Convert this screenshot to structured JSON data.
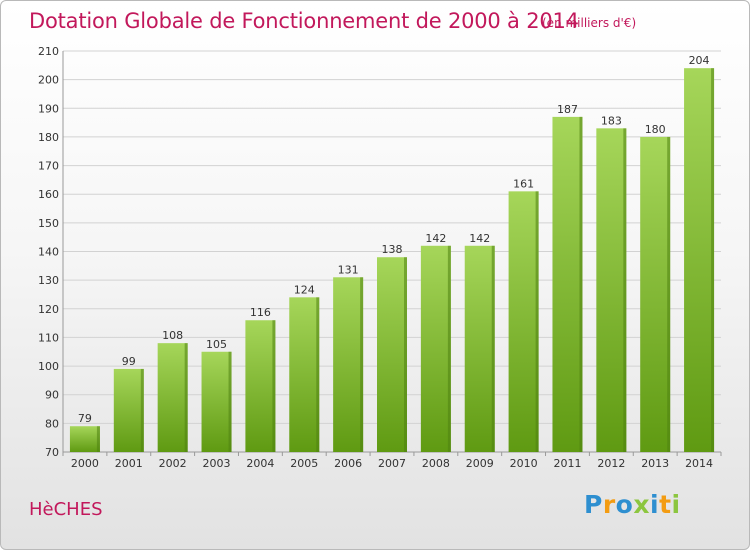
{
  "title": "Dotation Globale de Fonctionnement de 2000 à 2014",
  "subtitle": "(en milliers d'€)",
  "commune": "HèCHES",
  "logo": {
    "letters": [
      "P",
      "r",
      "o",
      "x",
      "i",
      "t",
      "i"
    ],
    "colors": [
      "#2e8fd0",
      "#f39c12",
      "#2e8fd0",
      "#8cc63f",
      "#2e8fd0",
      "#f39c12",
      "#8cc63f"
    ]
  },
  "chart_data": {
    "type": "bar",
    "title": "Dotation Globale de Fonctionnement de 2000 à 2014",
    "subtitle": "(en milliers d'€)",
    "categories": [
      "2000",
      "2001",
      "2002",
      "2003",
      "2004",
      "2005",
      "2006",
      "2007",
      "2008",
      "2009",
      "2010",
      "2011",
      "2012",
      "2013",
      "2014"
    ],
    "values": [
      79,
      99,
      108,
      105,
      116,
      124,
      131,
      138,
      142,
      142,
      161,
      187,
      183,
      180,
      204
    ],
    "ylim": [
      70,
      210
    ],
    "yticks": [
      70,
      80,
      90,
      100,
      110,
      120,
      130,
      140,
      150,
      160,
      170,
      180,
      190,
      200,
      210
    ],
    "grid": true,
    "legend": "none",
    "colors": {
      "bar_top": "#a6d65a",
      "bar_bottom": "#5f9a12",
      "bar_side": "#4f8110"
    }
  }
}
